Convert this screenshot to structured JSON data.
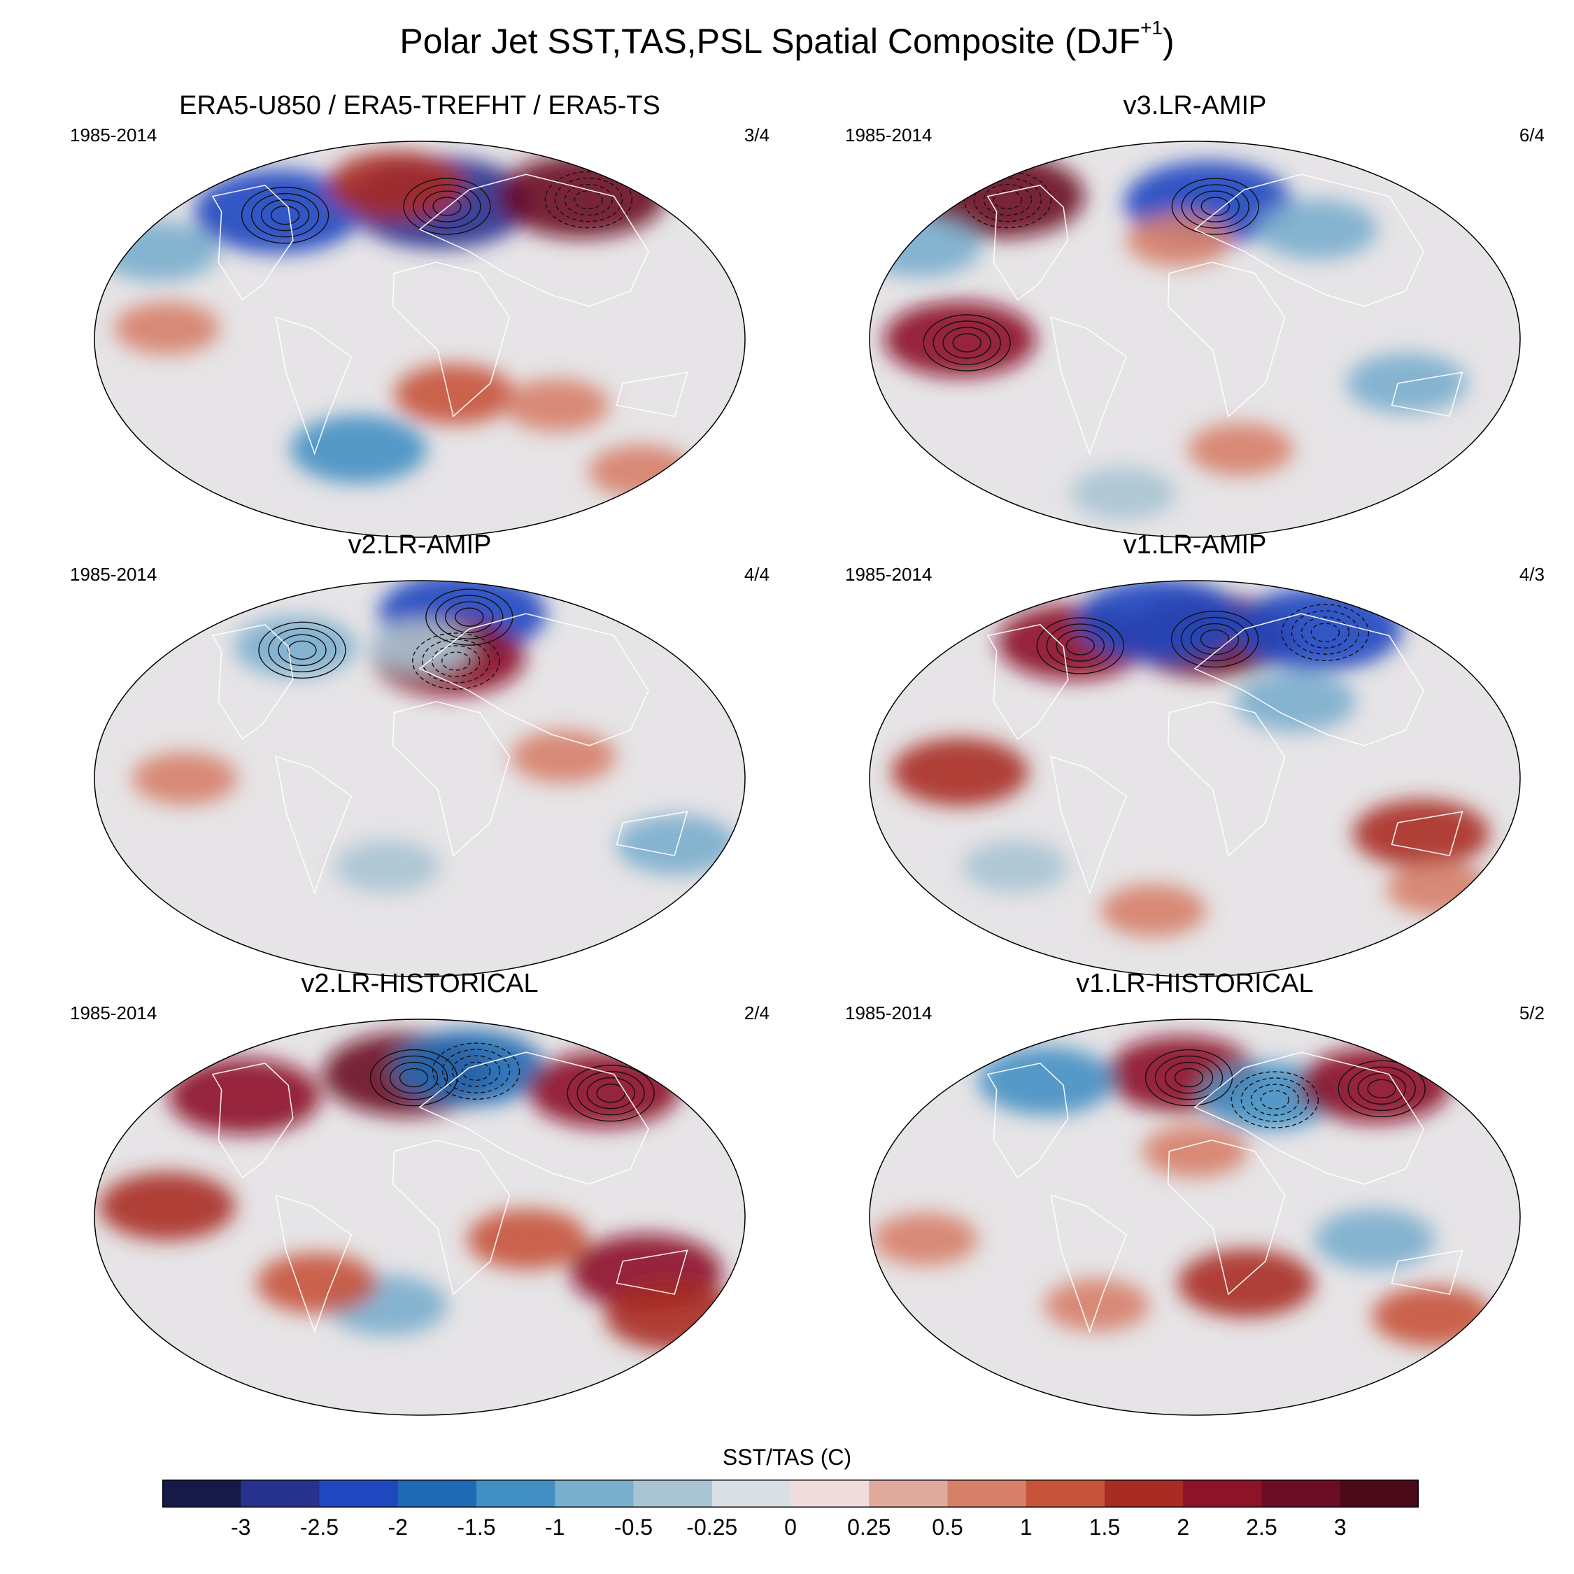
{
  "title": "Polar Jet SST,TAS,PSL Spatial Composite (DJF",
  "title_sup": "+1",
  "title_close": ")",
  "panels": [
    {
      "title": "ERA5-U850 / ERA5-TREFHT / ERA5-TS",
      "period": "1985-2014",
      "count": "3/4",
      "anomalies": [
        {
          "lon": 15,
          "lat": 62,
          "v": -3
        },
        {
          "lon": 125,
          "lat": 65,
          "v": 2.5
        },
        {
          "lon": -100,
          "lat": 58,
          "v": -2.5
        },
        {
          "lon": -160,
          "lat": 40,
          "v": -1
        },
        {
          "lon": -140,
          "lat": 5,
          "v": 0.5
        },
        {
          "lon": 20,
          "lat": -25,
          "v": 1
        },
        {
          "lon": -40,
          "lat": -50,
          "v": -1.5
        },
        {
          "lon": 80,
          "lat": -30,
          "v": 0.5
        },
        {
          "lon": -20,
          "lat": 70,
          "v": 1.5
        },
        {
          "lon": 160,
          "lat": -60,
          "v": 0.5
        }
      ]
    },
    {
      "title": "v3.LR-AMIP",
      "period": "1985-2014",
      "count": "6/4",
      "anomalies": [
        {
          "lon": 10,
          "lat": 62,
          "v": -2.5
        },
        {
          "lon": -150,
          "lat": 65,
          "v": 2.5
        },
        {
          "lon": -130,
          "lat": 0,
          "v": 2
        },
        {
          "lon": 80,
          "lat": 50,
          "v": -1
        },
        {
          "lon": -170,
          "lat": 42,
          "v": -1
        },
        {
          "lon": 120,
          "lat": -20,
          "v": -1
        },
        {
          "lon": 30,
          "lat": -50,
          "v": 0.5
        },
        {
          "lon": -60,
          "lat": -70,
          "v": -0.5
        },
        {
          "lon": -10,
          "lat": 45,
          "v": 0.5
        }
      ]
    },
    {
      "title": "v2.LR-AMIP",
      "period": "1985-2014",
      "count": "4/4",
      "anomalies": [
        {
          "lon": 40,
          "lat": 75,
          "v": -2.5
        },
        {
          "lon": 20,
          "lat": 55,
          "v": 2
        },
        {
          "lon": -90,
          "lat": 60,
          "v": -1
        },
        {
          "lon": -130,
          "lat": 0,
          "v": 0.5
        },
        {
          "lon": 150,
          "lat": -30,
          "v": -1
        },
        {
          "lon": -20,
          "lat": -40,
          "v": -0.5
        },
        {
          "lon": 80,
          "lat": 10,
          "v": 0.5
        },
        {
          "lon": 0,
          "lat": 60,
          "v": -0.5
        }
      ]
    },
    {
      "title": "v1.LR-AMIP",
      "period": "1985-2014",
      "count": "4/3",
      "anomalies": [
        {
          "lon": 10,
          "lat": 65,
          "v": 2.5
        },
        {
          "lon": 100,
          "lat": 68,
          "v": -2.5
        },
        {
          "lon": -90,
          "lat": 62,
          "v": 2
        },
        {
          "lon": -30,
          "lat": 72,
          "v": -2.5
        },
        {
          "lon": -130,
          "lat": 3,
          "v": 1.5
        },
        {
          "lon": 130,
          "lat": -25,
          "v": 1.5
        },
        {
          "lon": 160,
          "lat": -50,
          "v": 0.5
        },
        {
          "lon": -30,
          "lat": -60,
          "v": 0.5
        },
        {
          "lon": 60,
          "lat": 35,
          "v": -1
        },
        {
          "lon": -110,
          "lat": -40,
          "v": -0.5
        }
      ]
    },
    {
      "title": "v2.LR-HISTORICAL",
      "period": "1985-2014",
      "count": "2/4",
      "anomalies": [
        {
          "lon": -10,
          "lat": 65,
          "v": 2.5
        },
        {
          "lon": 40,
          "lat": 68,
          "v": -2
        },
        {
          "lon": 130,
          "lat": 58,
          "v": 2
        },
        {
          "lon": -120,
          "lat": 55,
          "v": 2
        },
        {
          "lon": -140,
          "lat": 5,
          "v": 1.5
        },
        {
          "lon": 130,
          "lat": -25,
          "v": 2
        },
        {
          "lon": -20,
          "lat": -40,
          "v": -1
        },
        {
          "lon": 160,
          "lat": -45,
          "v": 1.5
        },
        {
          "lon": -60,
          "lat": -30,
          "v": 1
        },
        {
          "lon": 60,
          "lat": -10,
          "v": 1
        }
      ]
    },
    {
      "title": "v1.LR-HISTORICAL",
      "period": "1985-2014",
      "count": "5/2",
      "anomalies": [
        {
          "lon": -10,
          "lat": 65,
          "v": 2
        },
        {
          "lon": 50,
          "lat": 55,
          "v": -1.5
        },
        {
          "lon": 130,
          "lat": 60,
          "v": 2
        },
        {
          "lon": -110,
          "lat": 62,
          "v": -1.5
        },
        {
          "lon": 30,
          "lat": -30,
          "v": 1.5
        },
        {
          "lon": 100,
          "lat": -10,
          "v": -1
        },
        {
          "lon": -60,
          "lat": -40,
          "v": 0.5
        },
        {
          "lon": 150,
          "lat": -45,
          "v": 1
        },
        {
          "lon": -150,
          "lat": -10,
          "v": 0.5
        },
        {
          "lon": 0,
          "lat": 30,
          "v": 0.5
        }
      ]
    }
  ],
  "colorbar": {
    "title": "SST/TAS (C)",
    "labels": [
      "-3",
      "-2.5",
      "-2",
      "-1.5",
      "-1",
      "-0.5",
      "-0.25",
      "0",
      "0.25",
      "0.5",
      "1",
      "1.5",
      "2",
      "2.5",
      "3"
    ],
    "colors": [
      "#151a47",
      "#27328f",
      "#1f47c0",
      "#1f6ab4",
      "#4290c3",
      "#7aaecd",
      "#a9c4d3",
      "#dadfe3",
      "#f0dcdc",
      "#e0aa9c",
      "#d6806a",
      "#c7533b",
      "#a82b24",
      "#8c1328",
      "#6c0d26",
      "#4b0a1a"
    ]
  }
}
